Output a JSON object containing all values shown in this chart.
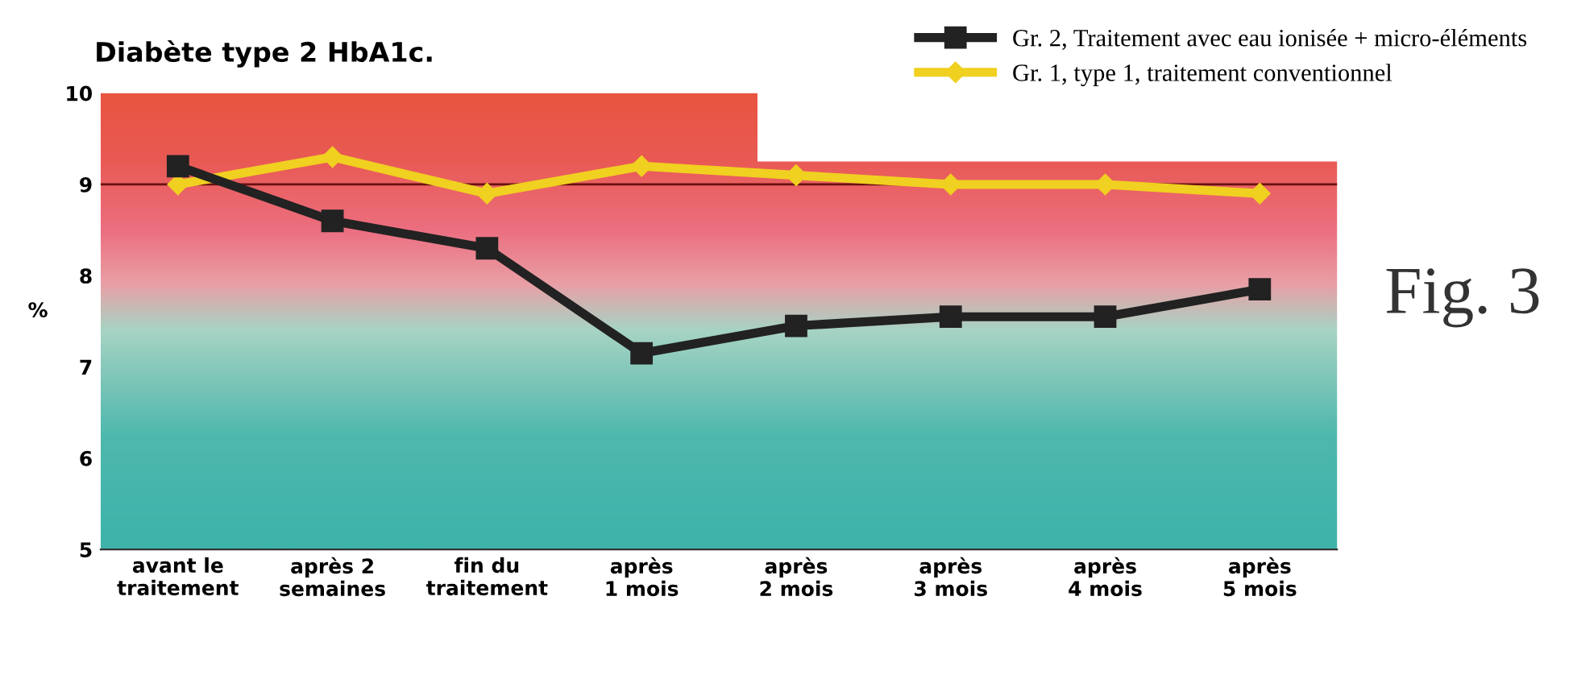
{
  "chart_data": {
    "type": "line",
    "title": "Diabète type 2 HbA1c.",
    "ylabel": "%",
    "categories": [
      "avant le\ntraitement",
      "après 2\nsemaines",
      "fin du\ntraitement",
      "après\n1 mois",
      "après\n2 mois",
      "après\n3 mois",
      "après\n4 mois",
      "après\n5 mois"
    ],
    "series": [
      {
        "name": "Gr. 2, Traitement avec eau ionisée + micro-éléments",
        "color": "#222222",
        "marker": "square",
        "values": [
          9.2,
          8.6,
          8.3,
          7.15,
          7.45,
          7.55,
          7.55,
          7.85
        ]
      },
      {
        "name": "Gr. 1, type 1, traitement conventionnel",
        "color": "#f0d020",
        "marker": "diamond",
        "values": [
          9.0,
          9.3,
          8.9,
          9.2,
          9.1,
          9.0,
          9.0,
          8.9
        ]
      }
    ],
    "ylim": [
      5,
      10
    ],
    "yticks": [
      5,
      6,
      7,
      8,
      9,
      10
    ],
    "ref_lines": [
      {
        "axis": "y",
        "value": 9,
        "color": "#6a1010"
      }
    ],
    "annotations": [
      "Fig. 3"
    ],
    "legend": "top right",
    "grid": false
  }
}
